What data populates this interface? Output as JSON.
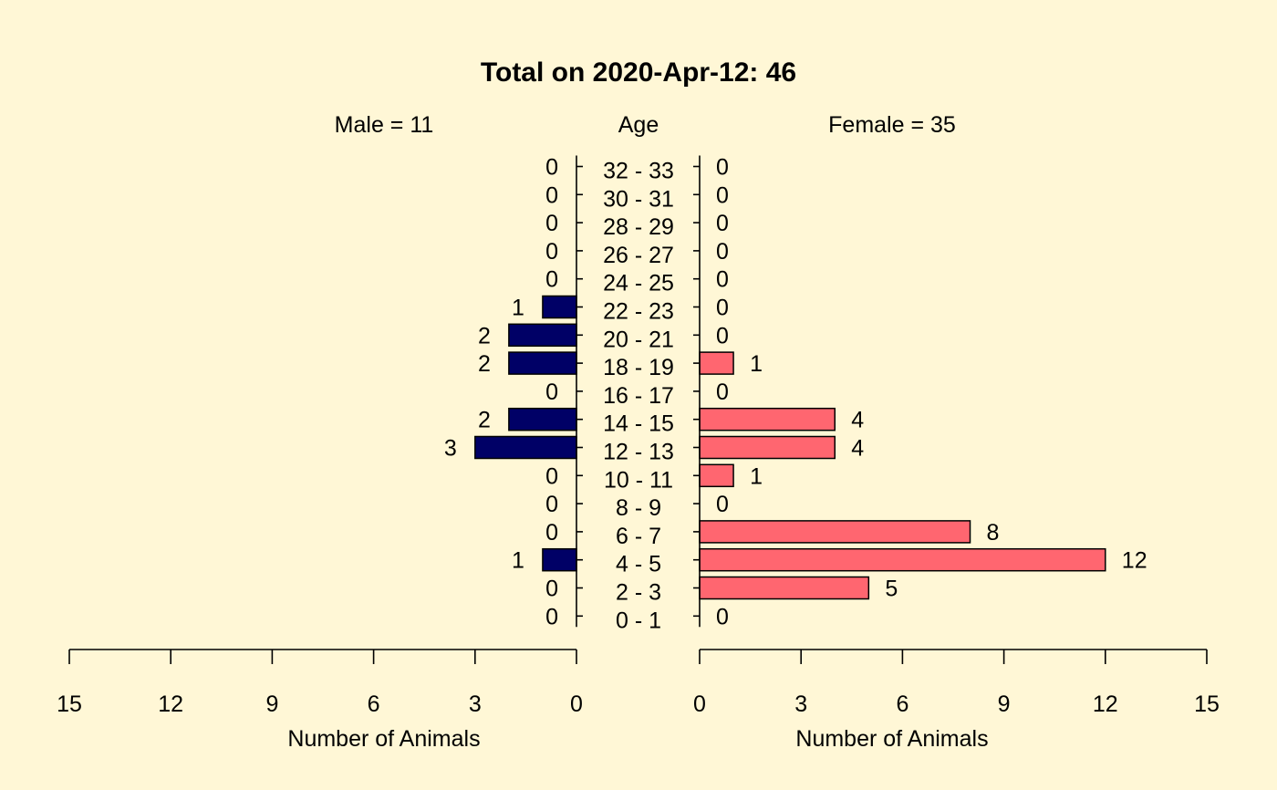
{
  "chart_data": {
    "type": "bar",
    "subtype": "population-pyramid",
    "title": "Total on 2020-Apr-12: 46",
    "center_label": "Age",
    "left_header": "Male = 11",
    "right_header": "Female = 35",
    "categories": [
      "0 - 1",
      "2 - 3",
      "4 - 5",
      "6 - 7",
      "8 - 9",
      "10 - 11",
      "12 - 13",
      "14 - 15",
      "16 - 17",
      "18 - 19",
      "20 - 21",
      "22 - 23",
      "24 - 25",
      "26 - 27",
      "28 - 29",
      "30 - 31",
      "32 - 33"
    ],
    "series": [
      {
        "name": "Male",
        "values": [
          0,
          0,
          1,
          0,
          0,
          0,
          3,
          2,
          0,
          2,
          2,
          1,
          0,
          0,
          0,
          0,
          0
        ],
        "color": "#000066",
        "side": "left"
      },
      {
        "name": "Female",
        "values": [
          0,
          5,
          12,
          8,
          0,
          1,
          4,
          4,
          0,
          1,
          0,
          0,
          0,
          0,
          0,
          0,
          0
        ],
        "color": "#FF6670",
        "side": "right"
      }
    ],
    "xlabel_left": "Number of Animals",
    "xlabel_right": "Number of Animals",
    "xlim": [
      0,
      15
    ],
    "xticks": [
      0,
      3,
      6,
      9,
      12,
      15
    ],
    "grid": false,
    "legend": "none",
    "background": "#FFF7D6"
  }
}
